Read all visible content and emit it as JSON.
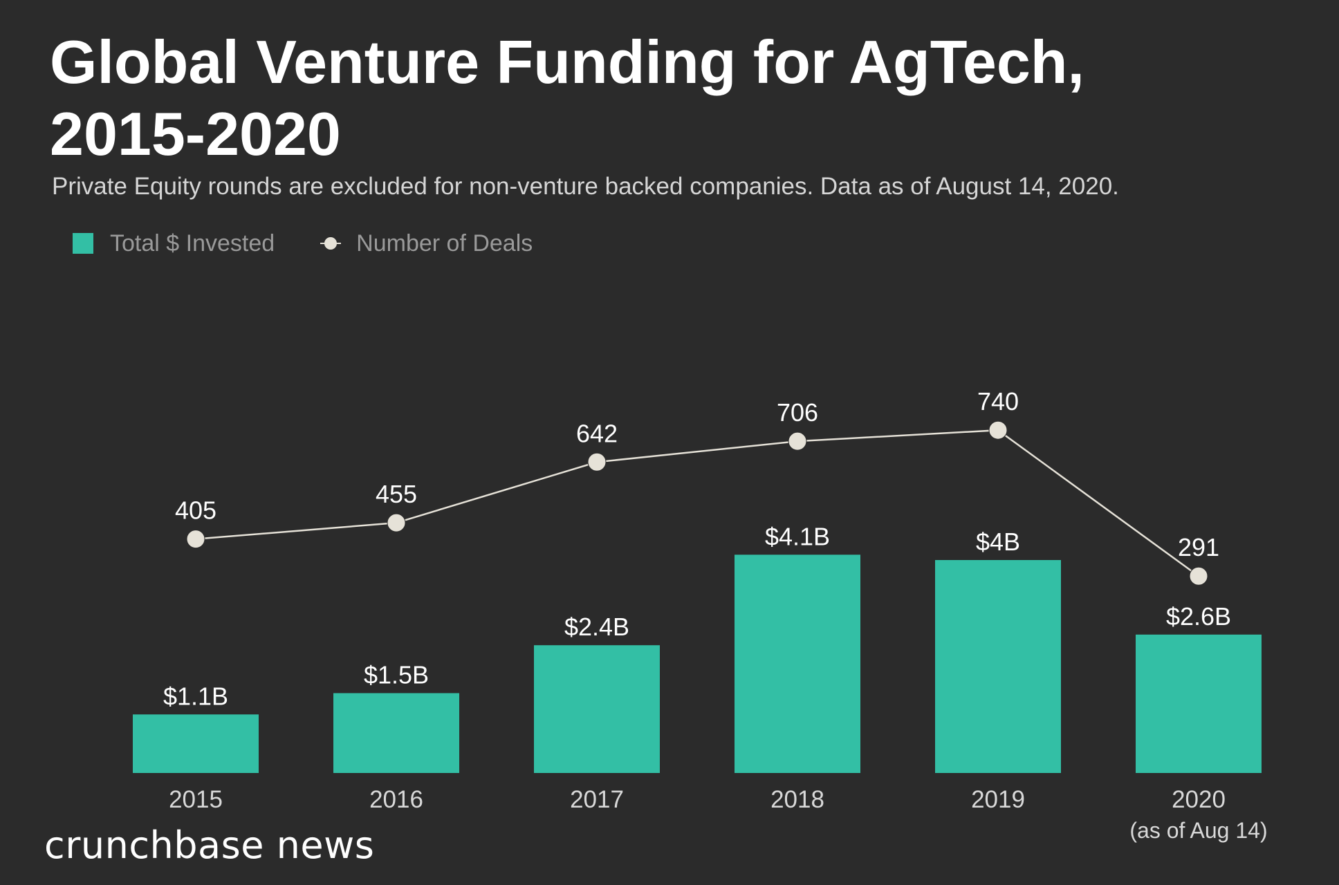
{
  "title": "Global Venture Funding for AgTech, 2015-2020",
  "subtitle": "Private Equity rounds are excluded for non-venture backed companies. Data as of August 14, 2020.",
  "legend": {
    "bars_label": "Total $ Invested",
    "line_label": "Number of Deals"
  },
  "brand": "crunchbase news",
  "colors": {
    "background": "#2b2b2b",
    "bar": "#33bfa5",
    "line": "#e6e2d8",
    "text": "#ffffff",
    "axis_text": "#d9d9d9"
  },
  "chart_data": {
    "type": "bar",
    "title": "Global Venture Funding for AgTech, 2015-2020",
    "categories": [
      "2015",
      "2016",
      "2017",
      "2018",
      "2019",
      "2020"
    ],
    "category_sublabels": [
      "",
      "",
      "",
      "",
      "",
      "(as of Aug 14)"
    ],
    "series": [
      {
        "name": "Total $ Invested",
        "type": "bar",
        "unit": "$B",
        "values": [
          1.1,
          1.5,
          2.4,
          4.1,
          4.0,
          2.6
        ],
        "labels": [
          "$1.1B",
          "$1.5B",
          "$2.4B",
          "$4.1B",
          "$4B",
          "$2.6B"
        ]
      },
      {
        "name": "Number of Deals",
        "type": "line",
        "values": [
          405,
          455,
          642,
          706,
          740,
          291
        ],
        "labels": [
          "405",
          "455",
          "642",
          "706",
          "740",
          "291"
        ]
      }
    ],
    "xlabel": "",
    "ylabel": "",
    "grid": false,
    "legend_position": "top-left"
  }
}
